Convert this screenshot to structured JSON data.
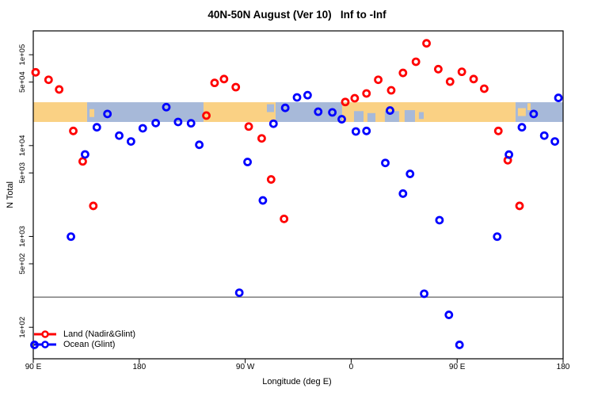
{
  "title": "40N-50N August (Ver 10)   Inf to -Inf",
  "chart_data": {
    "type": "scatter",
    "title": "40N-50N August (Ver 10)   Inf to -Inf",
    "xlabel": "Longitude (deg E)",
    "ylabel": "N Total",
    "x_axis": {
      "lim": [
        90,
        540
      ],
      "ticks": [
        90,
        180,
        270,
        360,
        450,
        540
      ],
      "labels": [
        "90 E",
        "180",
        "90 W",
        "0",
        "90 E",
        "180"
      ]
    },
    "y_axis": {
      "scale": "log",
      "lim": [
        45,
        183000
      ],
      "ticks": [
        100000,
        50000,
        10000,
        5000,
        1000,
        500,
        100
      ],
      "labels": [
        "1e+05",
        "5e+04",
        "1e+04",
        "5e+03",
        "1e+03",
        "5e+02",
        "1e+02"
      ]
    },
    "grid": false,
    "legend_position": "bottom-left",
    "ref_line_value": 215,
    "map_band": {
      "top_value": 30000,
      "bottom_value": 18200,
      "land_color": "#FAD184",
      "ocean_color": "#A7B9D9",
      "segments": [
        {
          "type": "land",
          "from": 90,
          "to": 135.7
        },
        {
          "type": "ocean",
          "from": 135.7,
          "to": 234.6
        },
        {
          "type": "land",
          "from": 234.6,
          "to": 295.8
        },
        {
          "type": "ocean",
          "from": 295.8,
          "to": 352.3
        },
        {
          "type": "land",
          "from": 352.3,
          "to": 499.6
        },
        {
          "type": "ocean",
          "from": 499.6,
          "to": 540
        }
      ],
      "ocean_patches": [
        {
          "from": 288.4,
          "to": 294.5,
          "top": 0.1,
          "bottom": 0.5
        },
        {
          "from": 362.4,
          "to": 370.5,
          "top": 0.45,
          "bottom": 1.0
        },
        {
          "from": 373.8,
          "to": 380.6,
          "top": 0.55,
          "bottom": 1.0
        },
        {
          "from": 388.6,
          "to": 400.7,
          "top": 0.45,
          "bottom": 1.0
        },
        {
          "from": 405.4,
          "to": 414.2,
          "top": 0.4,
          "bottom": 1.0
        },
        {
          "from": 417.5,
          "to": 421.6,
          "top": 0.5,
          "bottom": 0.85
        }
      ],
      "land_specks": [
        {
          "from": 137.8,
          "to": 141.8,
          "top": 0.35,
          "bottom": 0.75
        },
        {
          "from": 501.6,
          "to": 508.3,
          "top": 0.3,
          "bottom": 0.7
        },
        {
          "from": 509.7,
          "to": 512.4,
          "top": 0.05,
          "bottom": 0.4
        }
      ]
    },
    "series": [
      {
        "name": "Land (Nadir&Glint)",
        "color": "#FF0000",
        "points": [
          [
            92,
            64000
          ],
          [
            103,
            53000
          ],
          [
            112,
            41500
          ],
          [
            124,
            14500
          ],
          [
            132,
            6700
          ],
          [
            141,
            2170
          ],
          [
            237,
            21400
          ],
          [
            244,
            49000
          ],
          [
            252,
            54000
          ],
          [
            262,
            44000
          ],
          [
            273,
            16200
          ],
          [
            284,
            12000
          ],
          [
            292,
            4240
          ],
          [
            303,
            1560
          ],
          [
            355,
            30200
          ],
          [
            363,
            33200
          ],
          [
            373,
            37500
          ],
          [
            383,
            53000
          ],
          [
            394,
            40600
          ],
          [
            404,
            63100
          ],
          [
            415,
            83700
          ],
          [
            424,
            133500
          ],
          [
            434,
            69400
          ],
          [
            444,
            50600
          ],
          [
            454,
            64900
          ],
          [
            464,
            54000
          ],
          [
            473,
            42300
          ],
          [
            485,
            14500
          ],
          [
            493,
            6900
          ],
          [
            503,
            2170
          ]
        ]
      },
      {
        "name": "Ocean (Glint)",
        "color": "#0000FF",
        "points": [
          [
            91,
            64
          ],
          [
            122,
            995
          ],
          [
            134,
            7990
          ],
          [
            144,
            15900
          ],
          [
            153,
            22300
          ],
          [
            163,
            12870
          ],
          [
            173,
            11100
          ],
          [
            183,
            15500
          ],
          [
            194,
            17700
          ],
          [
            203,
            26500
          ],
          [
            213,
            18200
          ],
          [
            224,
            17600
          ],
          [
            231,
            10200
          ],
          [
            265,
            240
          ],
          [
            272,
            6600
          ],
          [
            285,
            2490
          ],
          [
            294,
            17400
          ],
          [
            304,
            26000
          ],
          [
            314,
            33900
          ],
          [
            323,
            35900
          ],
          [
            332,
            23600
          ],
          [
            344,
            23200
          ],
          [
            352,
            19500
          ],
          [
            364,
            14300
          ],
          [
            373,
            14500
          ],
          [
            389,
            6440
          ],
          [
            393,
            24300
          ],
          [
            404,
            2960
          ],
          [
            410,
            4880
          ],
          [
            422,
            234
          ],
          [
            435,
            1510
          ],
          [
            443,
            137
          ],
          [
            452,
            64
          ],
          [
            484,
            995
          ],
          [
            494,
            7960
          ],
          [
            505,
            15900
          ],
          [
            515,
            22300
          ],
          [
            524,
            12870
          ],
          [
            533,
            11100
          ],
          [
            536,
            33500
          ]
        ]
      }
    ]
  }
}
